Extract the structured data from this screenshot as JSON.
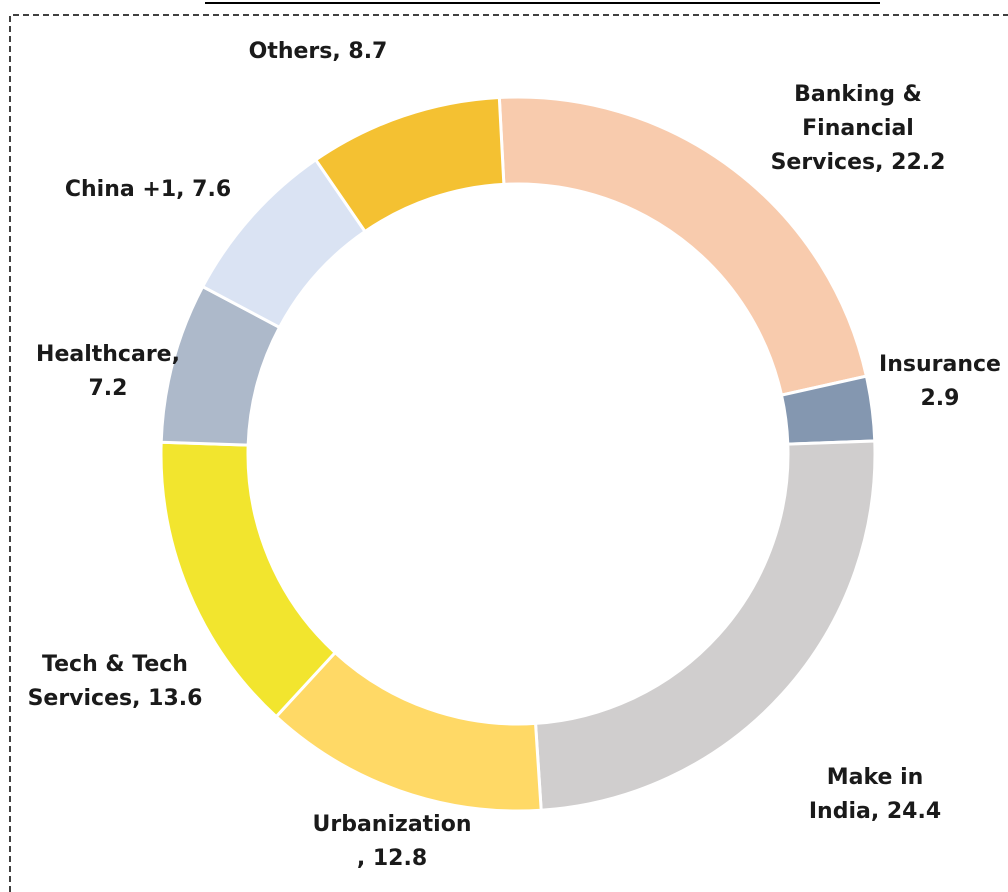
{
  "chart_data": {
    "type": "donut",
    "values": [
      22.2,
      2.9,
      24.4,
      12.8,
      13.6,
      7.2,
      7.6,
      8.7
    ],
    "value_labels": [
      "Banking &\nFinancial\nServices, 22.2",
      "Insurance\n2.9",
      "Make in\nIndia, 24.4",
      "Urbanization\n, 12.8",
      "Tech & Tech\nServices, 13.6",
      "Healthcare,\n7.2",
      "China +1, 7.6",
      "Others, 8.7"
    ],
    "colors": [
      "#f8cbad",
      "#8497b0",
      "#d0cece",
      "#ffd966",
      "#f2e52e",
      "#adb9ca",
      "#dae3f3",
      "#f4c132"
    ]
  }
}
